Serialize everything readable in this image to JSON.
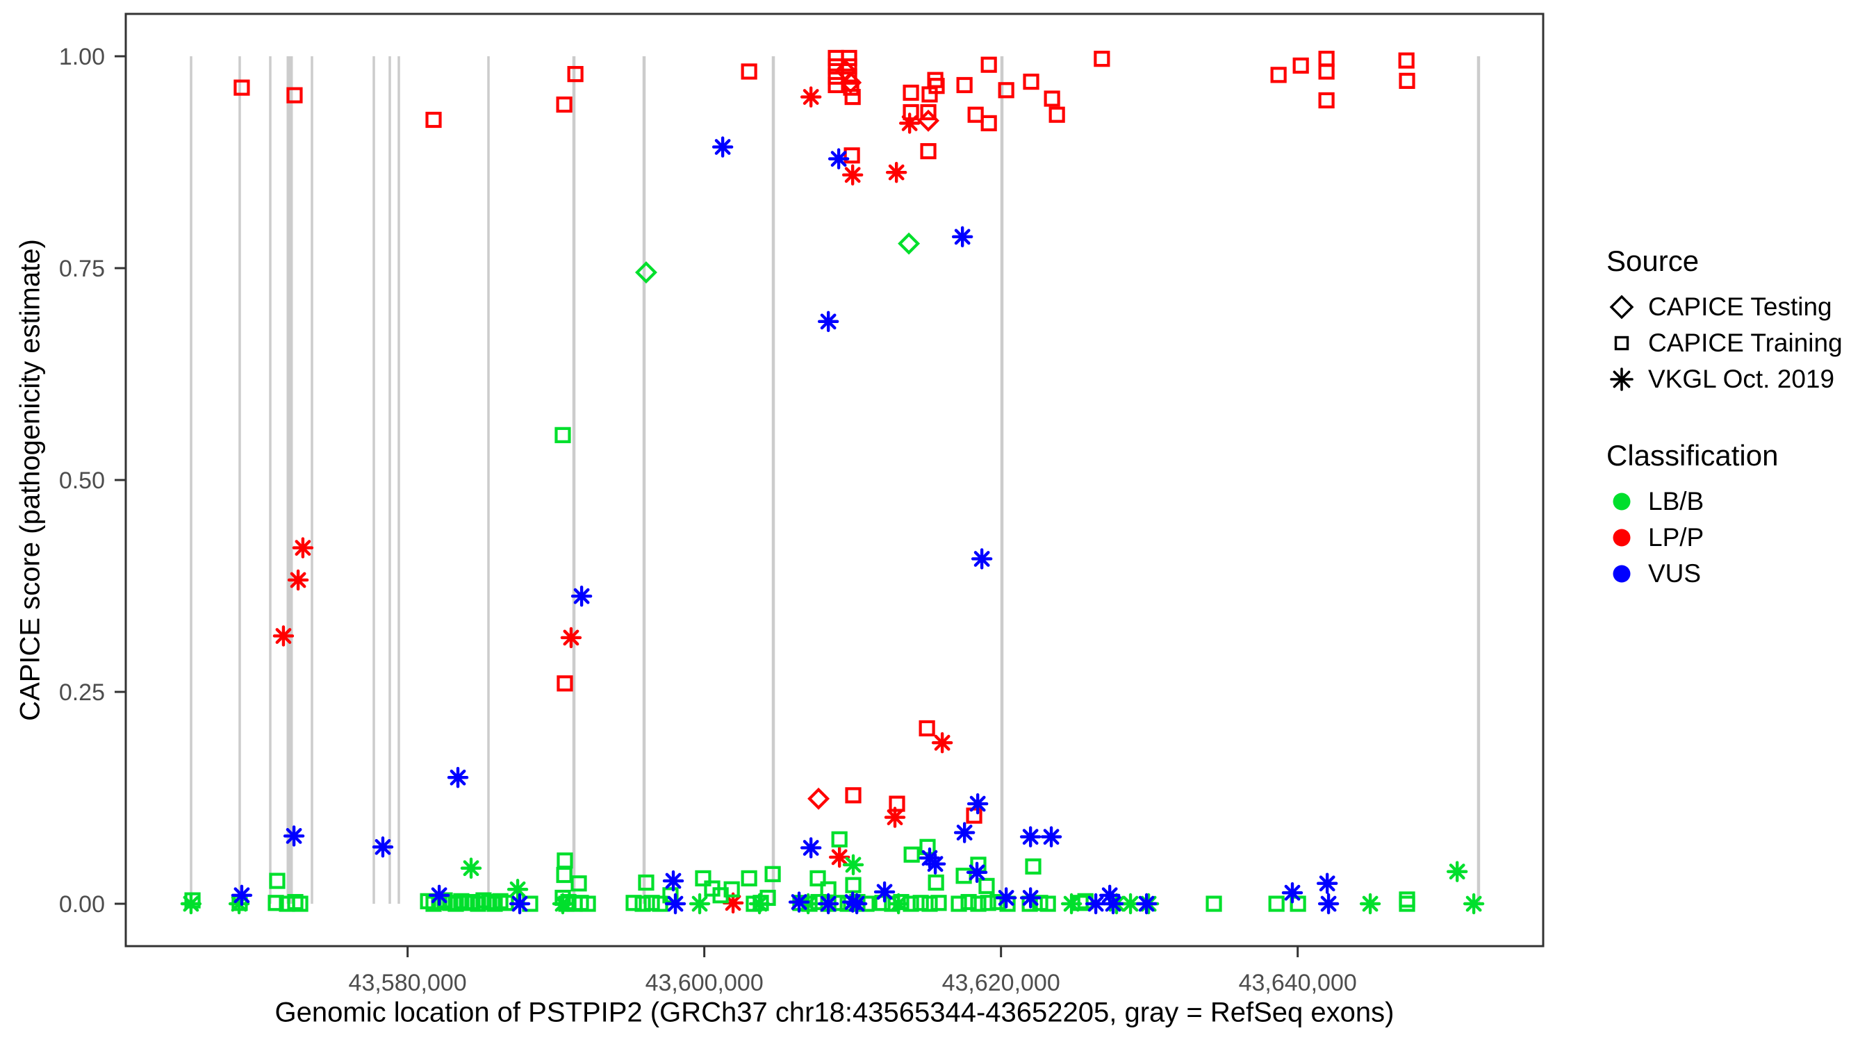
{
  "figure": {
    "background": "#ffffff"
  },
  "axes": {
    "x": {
      "label": "Genomic location of PSTPIP2 (GRCh37 chr18:43565344-43652205, gray = RefSeq exons)",
      "ticks": [
        "43,580,000",
        "43,600,000",
        "43,620,000",
        "43,640,000"
      ],
      "tick_values": [
        43580000,
        43600000,
        43620000,
        43640000
      ],
      "domain": [
        43561001,
        43656548
      ]
    },
    "y": {
      "label": "CAPICE score (pathogenicity estimate)",
      "ticks": [
        "0.00",
        "0.25",
        "0.50",
        "0.75",
        "1.00"
      ],
      "tick_values": [
        0,
        0.25,
        0.5,
        0.75,
        1.0
      ],
      "domain": [
        -0.05,
        1.05
      ]
    }
  },
  "legend": {
    "source": {
      "title": "Source",
      "items": [
        {
          "label": "CAPICE Testing",
          "shape": "diamond"
        },
        {
          "label": "CAPICE Training",
          "shape": "square"
        },
        {
          "label": "VKGL Oct. 2019",
          "shape": "asterisk"
        }
      ]
    },
    "classification": {
      "title": "Classification",
      "items": [
        {
          "label": "LB/B",
          "color": "#00DF2C"
        },
        {
          "label": "LP/P",
          "color": "#FF0000"
        },
        {
          "label": "VUS",
          "color": "#0000FF"
        }
      ]
    }
  },
  "colors": {
    "exon": "#CCCCCC",
    "border": "#333333",
    "tick_label": "#4D4D4D",
    "tick_mark": "#333333",
    "classes": {
      "B": "#00DF2C",
      "P": "#FF0000",
      "U": "#0000FF"
    }
  },
  "refseq_exons": [
    [
      43565404,
      3.5
    ],
    [
      43568682,
      3.5
    ],
    [
      43570743,
      3.5
    ],
    [
      43572054,
      9
    ],
    [
      43573553,
      3.5
    ],
    [
      43577722,
      3.5
    ],
    [
      43578799,
      3.5
    ],
    [
      43579408,
      3.5
    ],
    [
      43585450,
      3.5
    ],
    [
      43591211,
      4.5
    ],
    [
      43595941,
      4.5
    ],
    [
      43604653,
      4.5
    ],
    [
      43620062,
      4.5
    ],
    [
      43652191,
      4.5
    ]
  ],
  "chart_data": {
    "type": "scatter",
    "title": "",
    "xlabel": "Genomic location of PSTPIP2 (GRCh37 chr18:43565344-43652205, gray = RefSeq exons)",
    "ylabel": "CAPICE score (pathogenicity estimate)",
    "xlim": [
      43561001,
      43656548
    ],
    "ylim": [
      -0.05,
      1.05
    ],
    "x_ticks": [
      43580000,
      43600000,
      43620000,
      43640000
    ],
    "y_ticks": [
      0,
      0.25,
      0.5,
      0.75,
      1.0
    ],
    "grid": "off",
    "legend_position": "right",
    "shape_legend": {
      "title": "Source",
      "diamond": "CAPICE Testing",
      "square": "CAPICE Training",
      "asterisk": "VKGL Oct. 2019"
    },
    "color_legend": {
      "title": "Classification",
      "LB/B": "green",
      "LP/P": "red",
      "VUS": "blue"
    },
    "point_format": [
      "genomic_position",
      "capice_score",
      "source: T=CAPICE Testing(diamond) R=CAPICE Training(square) V=VKGL Oct. 2019(asterisk)",
      "classification: B=LB/B(green) P=LP/P(red) U=VUS(blue)"
    ],
    "points": [
      [
        43568820,
        0.963,
        "R",
        "P"
      ],
      [
        43572380,
        0.954,
        "R",
        "P"
      ],
      [
        43581750,
        0.925,
        "R",
        "P"
      ],
      [
        43590560,
        0.943,
        "R",
        "P"
      ],
      [
        43591310,
        0.979,
        "R",
        "P"
      ],
      [
        43603020,
        0.982,
        "R",
        "P"
      ],
      [
        43608870,
        0.998,
        "R",
        "P"
      ],
      [
        43609760,
        0.998,
        "R",
        "P"
      ],
      [
        43608870,
        0.988,
        "R",
        "P"
      ],
      [
        43609760,
        0.988,
        "R",
        "P"
      ],
      [
        43608870,
        0.976,
        "R",
        "P"
      ],
      [
        43609760,
        0.976,
        "R",
        "P"
      ],
      [
        43608870,
        0.966,
        "R",
        "P"
      ],
      [
        43609900,
        0.963,
        "R",
        "P"
      ],
      [
        43610000,
        0.952,
        "R",
        "P"
      ],
      [
        43613930,
        0.957,
        "R",
        "P"
      ],
      [
        43615190,
        0.955,
        "R",
        "P"
      ],
      [
        43615570,
        0.972,
        "R",
        "P"
      ],
      [
        43615660,
        0.965,
        "R",
        "P"
      ],
      [
        43617540,
        0.966,
        "R",
        "P"
      ],
      [
        43619180,
        0.99,
        "R",
        "P"
      ],
      [
        43620350,
        0.96,
        "R",
        "P"
      ],
      [
        43622030,
        0.97,
        "R",
        "P"
      ],
      [
        43623440,
        0.95,
        "R",
        "P"
      ],
      [
        43623770,
        0.931,
        "R",
        "P"
      ],
      [
        43618290,
        0.931,
        "R",
        "P"
      ],
      [
        43619180,
        0.921,
        "R",
        "P"
      ],
      [
        43613930,
        0.934,
        "R",
        "P"
      ],
      [
        43615100,
        0.934,
        "R",
        "P"
      ],
      [
        43615100,
        0.888,
        "R",
        "P"
      ],
      [
        43609950,
        0.883,
        "R",
        "P"
      ],
      [
        43626800,
        0.997,
        "R",
        "P"
      ],
      [
        43638710,
        0.978,
        "R",
        "P"
      ],
      [
        43640210,
        0.989,
        "R",
        "P"
      ],
      [
        43641940,
        0.997,
        "R",
        "P"
      ],
      [
        43641940,
        0.982,
        "R",
        "P"
      ],
      [
        43641940,
        0.948,
        "R",
        "P"
      ],
      [
        43647330,
        0.995,
        "R",
        "P"
      ],
      [
        43647370,
        0.971,
        "R",
        "P"
      ],
      [
        43615010,
        0.207,
        "R",
        "P"
      ],
      [
        43612990,
        0.118,
        "R",
        "P"
      ],
      [
        43610040,
        0.128,
        "R",
        "P"
      ],
      [
        43618190,
        0.104,
        "R",
        "P"
      ],
      [
        43590600,
        0.26,
        "R",
        "P"
      ],
      [
        43609530,
        0.983,
        "T",
        "P"
      ],
      [
        43609860,
        0.969,
        "T",
        "P"
      ],
      [
        43615100,
        0.924,
        "T",
        "P"
      ],
      [
        43607700,
        0.124,
        "T",
        "P"
      ],
      [
        43607190,
        0.952,
        "V",
        "P"
      ],
      [
        43610000,
        0.86,
        "V",
        "P"
      ],
      [
        43612950,
        0.863,
        "V",
        "P"
      ],
      [
        43613840,
        0.921,
        "V",
        "P"
      ],
      [
        43572940,
        0.42,
        "V",
        "P"
      ],
      [
        43572620,
        0.382,
        "V",
        "P"
      ],
      [
        43571630,
        0.316,
        "V",
        "P"
      ],
      [
        43591020,
        0.314,
        "V",
        "P"
      ],
      [
        43616040,
        0.19,
        "V",
        "P"
      ],
      [
        43612850,
        0.102,
        "V",
        "P"
      ],
      [
        43609110,
        0.055,
        "V",
        "P"
      ],
      [
        43601940,
        0.001,
        "V",
        "P"
      ],
      [
        43596080,
        0.745,
        "T",
        "B"
      ],
      [
        43613790,
        0.779,
        "T",
        "B"
      ],
      [
        43590460,
        0.553,
        "R",
        "B"
      ],
      [
        43571210,
        0.027,
        "R",
        "B"
      ],
      [
        43565500,
        0.004,
        "R",
        "B"
      ],
      [
        43568680,
        0.001,
        "R",
        "B"
      ],
      [
        43571120,
        0.001,
        "R",
        "B"
      ],
      [
        43571870,
        0.0,
        "R",
        "B"
      ],
      [
        43572430,
        0.002,
        "R",
        "B"
      ],
      [
        43572760,
        0.0,
        "R",
        "B"
      ],
      [
        43581380,
        0.003,
        "R",
        "B"
      ],
      [
        43581750,
        0.0,
        "R",
        "B"
      ],
      [
        43582130,
        0.002,
        "R",
        "B"
      ],
      [
        43582500,
        0.004,
        "R",
        "B"
      ],
      [
        43582870,
        0.001,
        "R",
        "B"
      ],
      [
        43583250,
        0.0,
        "R",
        "B"
      ],
      [
        43583620,
        0.003,
        "R",
        "B"
      ],
      [
        43584000,
        0.001,
        "R",
        "B"
      ],
      [
        43584370,
        0.002,
        "R",
        "B"
      ],
      [
        43584750,
        0.0,
        "R",
        "B"
      ],
      [
        43585120,
        0.004,
        "R",
        "B"
      ],
      [
        43585500,
        0.002,
        "R",
        "B"
      ],
      [
        43585870,
        0.0,
        "R",
        "B"
      ],
      [
        43586250,
        0.003,
        "R",
        "B"
      ],
      [
        43586620,
        0.001,
        "R",
        "B"
      ],
      [
        43588260,
        0.0,
        "R",
        "B"
      ],
      [
        43590600,
        0.051,
        "R",
        "B"
      ],
      [
        43590560,
        0.034,
        "R",
        "B"
      ],
      [
        43591540,
        0.024,
        "R",
        "B"
      ],
      [
        43590460,
        0.007,
        "R",
        "B"
      ],
      [
        43590840,
        0.002,
        "R",
        "B"
      ],
      [
        43591260,
        0.0,
        "R",
        "B"
      ],
      [
        43591680,
        0.001,
        "R",
        "B"
      ],
      [
        43592150,
        0.0,
        "R",
        "B"
      ],
      [
        43590700,
        0.0,
        "R",
        "B"
      ],
      [
        43595240,
        0.001,
        "R",
        "B"
      ],
      [
        43595850,
        0.0,
        "R",
        "B"
      ],
      [
        43596460,
        0.001,
        "R",
        "B"
      ],
      [
        43597020,
        0.0,
        "R",
        "B"
      ],
      [
        43597720,
        0.01,
        "R",
        "B"
      ],
      [
        43596080,
        0.025,
        "R",
        "B"
      ],
      [
        43599920,
        0.03,
        "R",
        "B"
      ],
      [
        43600530,
        0.018,
        "R",
        "B"
      ],
      [
        43601100,
        0.01,
        "R",
        "B"
      ],
      [
        43601850,
        0.017,
        "R",
        "B"
      ],
      [
        43603020,
        0.03,
        "R",
        "B"
      ],
      [
        43604610,
        0.035,
        "R",
        "B"
      ],
      [
        43603340,
        0.0,
        "R",
        "B"
      ],
      [
        43603810,
        0.001,
        "R",
        "B"
      ],
      [
        43604280,
        0.007,
        "R",
        "B"
      ],
      [
        43606480,
        0.001,
        "R",
        "B"
      ],
      [
        43607090,
        0.0,
        "R",
        "B"
      ],
      [
        43607700,
        0.002,
        "R",
        "B"
      ],
      [
        43608360,
        0.0,
        "R",
        "B"
      ],
      [
        43609010,
        0.001,
        "R",
        "B"
      ],
      [
        43609670,
        0.0,
        "R",
        "B"
      ],
      [
        43610320,
        0.002,
        "R",
        "B"
      ],
      [
        43610930,
        0.0,
        "R",
        "B"
      ],
      [
        43612010,
        0.001,
        "R",
        "B"
      ],
      [
        43612660,
        0.0,
        "R",
        "B"
      ],
      [
        43613270,
        0.002,
        "R",
        "B"
      ],
      [
        43613930,
        0.0,
        "R",
        "B"
      ],
      [
        43614590,
        0.001,
        "R",
        "B"
      ],
      [
        43615190,
        0.0,
        "R",
        "B"
      ],
      [
        43615800,
        0.001,
        "R",
        "B"
      ],
      [
        43617160,
        0.0,
        "R",
        "B"
      ],
      [
        43617820,
        0.002,
        "R",
        "B"
      ],
      [
        43618470,
        0.0,
        "R",
        "B"
      ],
      [
        43619130,
        0.001,
        "R",
        "B"
      ],
      [
        43619780,
        0.002,
        "R",
        "B"
      ],
      [
        43620440,
        0.0,
        "R",
        "B"
      ],
      [
        43621940,
        0.0,
        "R",
        "B"
      ],
      [
        43622640,
        0.001,
        "R",
        "B"
      ],
      [
        43623160,
        0.0,
        "R",
        "B"
      ],
      [
        43625360,
        0.001,
        "R",
        "B"
      ],
      [
        43625690,
        0.003,
        "R",
        "B"
      ],
      [
        43634350,
        0.0,
        "R",
        "B"
      ],
      [
        43638570,
        0.0,
        "R",
        "B"
      ],
      [
        43640020,
        0.0,
        "R",
        "B"
      ],
      [
        43647370,
        0.005,
        "R",
        "B"
      ],
      [
        43647370,
        0.0,
        "R",
        "B"
      ],
      [
        43607650,
        0.03,
        "R",
        "B"
      ],
      [
        43608360,
        0.017,
        "R",
        "B"
      ],
      [
        43609110,
        0.076,
        "R",
        "B"
      ],
      [
        43610040,
        0.022,
        "R",
        "B"
      ],
      [
        43613980,
        0.058,
        "R",
        "B"
      ],
      [
        43615050,
        0.067,
        "R",
        "B"
      ],
      [
        43615620,
        0.025,
        "R",
        "B"
      ],
      [
        43617490,
        0.033,
        "R",
        "B"
      ],
      [
        43618470,
        0.046,
        "R",
        "B"
      ],
      [
        43619030,
        0.021,
        "R",
        "B"
      ],
      [
        43622170,
        0.044,
        "R",
        "B"
      ],
      [
        43565400,
        0.0,
        "V",
        "B"
      ],
      [
        43568640,
        0.0,
        "V",
        "B"
      ],
      [
        43584280,
        0.042,
        "V",
        "B"
      ],
      [
        43587420,
        0.017,
        "V",
        "B"
      ],
      [
        43590460,
        0.0,
        "V",
        "B"
      ],
      [
        43599690,
        0.0,
        "V",
        "B"
      ],
      [
        43603720,
        0.0,
        "V",
        "B"
      ],
      [
        43607000,
        0.0,
        "V",
        "B"
      ],
      [
        43610040,
        0.046,
        "V",
        "B"
      ],
      [
        43613090,
        0.0,
        "V",
        "B"
      ],
      [
        43624750,
        0.0,
        "V",
        "B"
      ],
      [
        43627790,
        0.0,
        "V",
        "B"
      ],
      [
        43628730,
        0.0,
        "V",
        "B"
      ],
      [
        43629950,
        0.0,
        "V",
        "B"
      ],
      [
        43644890,
        0.0,
        "V",
        "B"
      ],
      [
        43650750,
        0.038,
        "V",
        "B"
      ],
      [
        43651870,
        0.0,
        "V",
        "B"
      ],
      [
        43601240,
        0.893,
        "V",
        "U"
      ],
      [
        43609060,
        0.879,
        "V",
        "U"
      ],
      [
        43608360,
        0.687,
        "V",
        "U"
      ],
      [
        43617400,
        0.787,
        "V",
        "U"
      ],
      [
        43618710,
        0.407,
        "V",
        "U"
      ],
      [
        43591730,
        0.363,
        "V",
        "U"
      ],
      [
        43583390,
        0.149,
        "V",
        "U"
      ],
      [
        43572340,
        0.08,
        "V",
        "U"
      ],
      [
        43578330,
        0.067,
        "V",
        "U"
      ],
      [
        43607190,
        0.066,
        "V",
        "U"
      ],
      [
        43618430,
        0.118,
        "V",
        "U"
      ],
      [
        43617540,
        0.084,
        "V",
        "U"
      ],
      [
        43621990,
        0.079,
        "V",
        "U"
      ],
      [
        43623390,
        0.079,
        "V",
        "U"
      ],
      [
        43615190,
        0.054,
        "V",
        "U"
      ],
      [
        43615570,
        0.047,
        "V",
        "U"
      ],
      [
        43618380,
        0.037,
        "V",
        "U"
      ],
      [
        43627330,
        0.01,
        "V",
        "U"
      ],
      [
        43639640,
        0.013,
        "V",
        "U"
      ],
      [
        43641990,
        0.024,
        "V",
        "U"
      ],
      [
        43642080,
        0.0,
        "V",
        "U"
      ],
      [
        43582130,
        0.01,
        "V",
        "U"
      ],
      [
        43568820,
        0.01,
        "V",
        "U"
      ],
      [
        43587560,
        0.0,
        "V",
        "U"
      ],
      [
        43598050,
        0.0,
        "V",
        "U"
      ],
      [
        43597910,
        0.027,
        "V",
        "U"
      ],
      [
        43606390,
        0.002,
        "V",
        "U"
      ],
      [
        43608360,
        0.0,
        "V",
        "U"
      ],
      [
        43610000,
        0.002,
        "V",
        "U"
      ],
      [
        43610280,
        0.0,
        "V",
        "U"
      ],
      [
        43620350,
        0.007,
        "V",
        "U"
      ],
      [
        43621990,
        0.007,
        "V",
        "U"
      ],
      [
        43612150,
        0.014,
        "V",
        "U"
      ],
      [
        43626390,
        0.0,
        "V",
        "U"
      ],
      [
        43627560,
        0.0,
        "V",
        "U"
      ],
      [
        43629810,
        0.0,
        "V",
        "U"
      ]
    ]
  }
}
